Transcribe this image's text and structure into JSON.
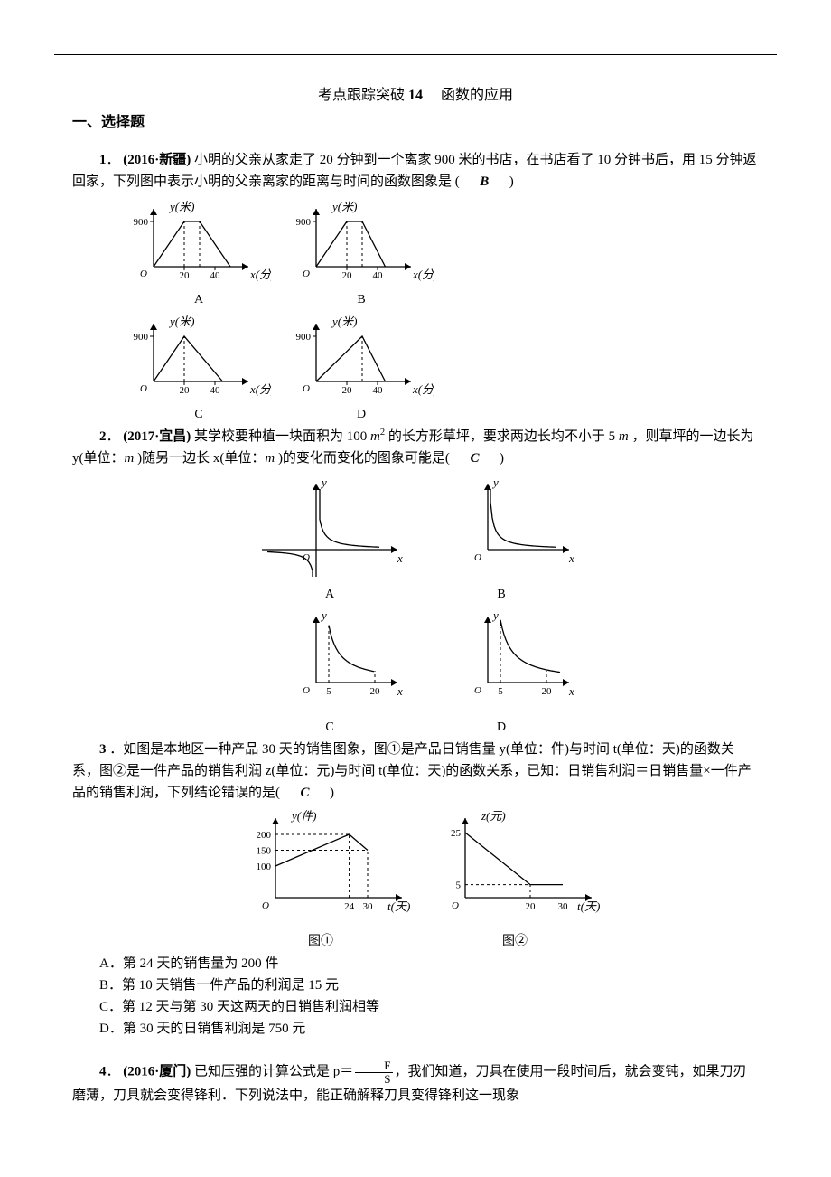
{
  "page": {
    "title_prefix": "考点跟踪突破",
    "title_num": "14",
    "title_topic": "　函数的应用",
    "section1": "一、选择题"
  },
  "q1": {
    "num": "1",
    "src_bold": "(2016·新疆)",
    "text": "小明的父亲从家走了 20 分钟到一个离家 900 米的书店，在书店看了 10 分钟书后，用 15 分钟返回家，下列图中表示小明的父亲离家的距离与时间的函数图象是 ( 　",
    "answer": "B",
    "text_end": "　 )",
    "graphs": {
      "ylab": "y(米)",
      "xlab": "x(分)",
      "ymax_label": "900",
      "xticks": [
        "20",
        "40"
      ],
      "A": {
        "pts": [
          [
            0,
            0
          ],
          [
            20,
            900
          ],
          [
            30,
            900
          ],
          [
            50,
            0
          ]
        ],
        "dash_x": [
          20,
          30
        ]
      },
      "B": {
        "pts": [
          [
            0,
            0
          ],
          [
            20,
            900
          ],
          [
            30,
            900
          ],
          [
            45,
            0
          ]
        ],
        "dash_x": [
          20,
          30
        ]
      },
      "C": {
        "pts": [
          [
            0,
            0
          ],
          [
            20,
            900
          ],
          [
            45,
            0
          ]
        ],
        "dash_x": [
          20
        ]
      },
      "D": {
        "pts": [
          [
            0,
            0
          ],
          [
            30,
            900
          ],
          [
            45,
            0
          ]
        ],
        "dash_x": [
          30
        ]
      },
      "labels": {
        "A": "A",
        "B": "B",
        "C": "C",
        "D": "D"
      }
    }
  },
  "q2": {
    "num": "2",
    "src_bold": "(2017·宜昌)",
    "text_a": "某学校要种植一块面积为 100 ",
    "unit1": "m",
    "sup1": "2",
    "text_b": " 的长方形草坪，要求两边长均不小于 5 ",
    "unit2": "m",
    "text_c": "，则草坪的一边长为 y(单位：",
    "unit3": "m",
    "text_d": ")随另一边长 x(单位：",
    "unit4": "m",
    "text_e": ")的变化而变化的图象可能是( 　",
    "answer": "C",
    "text_end": "　 )",
    "graphs": {
      "ylab": "y",
      "xlab": "x",
      "xt5": "5",
      "xt20": "20",
      "labels": {
        "A": "A",
        "B": "B",
        "C": "C",
        "D": "D"
      }
    }
  },
  "q3": {
    "num": "3",
    "text": "．如图是本地区一种产品 30 天的销售图象，图①是产品日销售量 y(单位：件)与时间 t(单位：天)的函数关系，图②是一件产品的销售利润 z(单位：元)与时间 t(单位：天)的函数关系，已知：日销售利润＝日销售量×一件产品的销售利润，下列结论错误的是( 　",
    "answer": "C",
    "text_end": "　 )",
    "chart1": {
      "ylab": "y(件)",
      "xlab": "t(天)",
      "label": "图①",
      "yticks": [
        "100",
        "150",
        "200"
      ],
      "xticks": [
        "24",
        "30"
      ],
      "pts": [
        [
          0,
          100
        ],
        [
          24,
          200
        ],
        [
          30,
          150
        ]
      ],
      "dash_y_at": [
        150,
        200
      ],
      "dash_x_at": [
        24,
        30
      ]
    },
    "chart2": {
      "ylab": "z(元)",
      "xlab": "t(天)",
      "label": "图②",
      "yticks": [
        "5",
        "25"
      ],
      "xticks": [
        "20",
        "30"
      ],
      "pts": [
        [
          0,
          25
        ],
        [
          20,
          5
        ],
        [
          30,
          5
        ]
      ],
      "dash_y_at": [
        5
      ],
      "dash_x_at": [
        20
      ]
    },
    "opts": {
      "A": "A．第 24 天的销售量为 200 件",
      "B": "B．第 10 天销售一件产品的利润是 15 元",
      "C": "C．第 12 天与第 30 天这两天的日销售利润相等",
      "D": "D．第 30 天的日销售利润是 750 元"
    }
  },
  "q4": {
    "num": "4",
    "src_bold": "(2016·厦门)",
    "text_a": "已知压强的计算公式是 p＝",
    "frac_num": "F",
    "frac_den": "S",
    "text_b": "，我们知道，刀具在使用一段时间后，就会变钝，如果刀刃磨薄，刀具就会变得锋利．下列说法中，能正确解释刀具变得锋利这一现象"
  },
  "style": {
    "axis_color": "#000000",
    "line_color": "#000000",
    "dash_pattern": "3,3",
    "font_small": 11,
    "font_axislabel": 13,
    "stroke_w": 1.3
  }
}
